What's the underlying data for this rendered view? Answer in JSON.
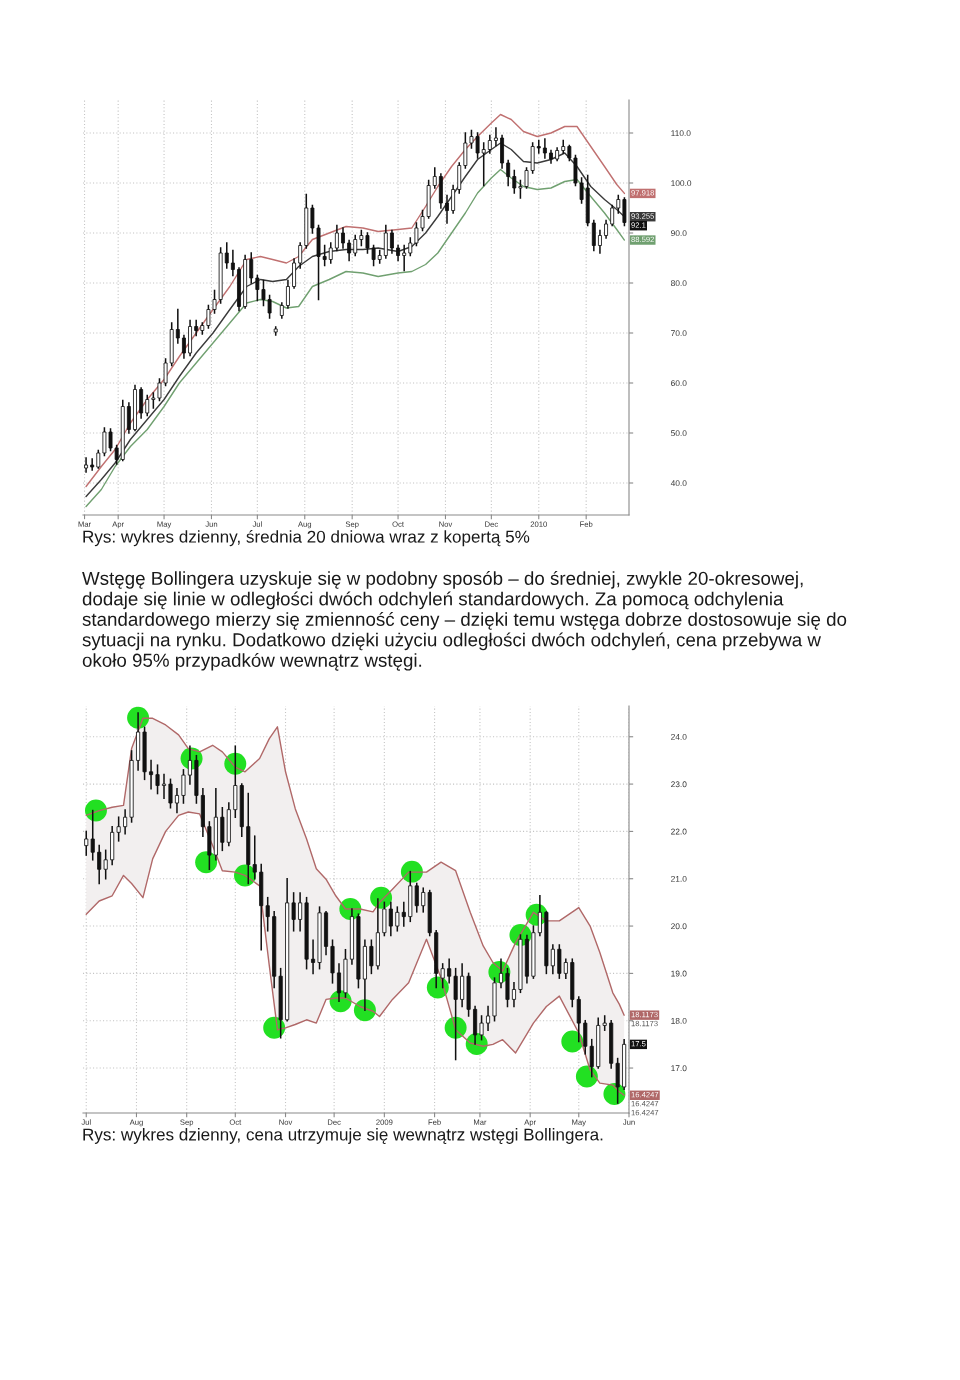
{
  "chart_data": [
    {
      "type": "candlestick",
      "color": "#111111",
      "x": [
        "2009-03-11",
        "2009-03-15",
        "2009-03-19",
        "2009-03-23",
        "2009-03-27",
        "2009-03-31",
        "2009-04-04",
        "2009-04-08",
        "2009-04-12",
        "2009-04-16",
        "2009-04-20",
        "2009-04-24",
        "2009-04-28",
        "2009-05-02",
        "2009-05-06",
        "2009-05-10",
        "2009-05-14",
        "2009-05-18",
        "2009-05-22",
        "2009-05-26",
        "2009-05-30",
        "2009-06-03",
        "2009-06-07",
        "2009-06-11",
        "2009-06-15",
        "2009-06-19",
        "2009-06-23",
        "2009-06-27",
        "2009-07-01",
        "2009-07-05",
        "2009-07-09",
        "2009-07-13",
        "2009-07-17",
        "2009-07-21",
        "2009-07-25",
        "2009-07-29",
        "2009-08-02",
        "2009-08-06",
        "2009-08-10",
        "2009-08-14",
        "2009-08-18",
        "2009-08-22",
        "2009-08-26",
        "2009-08-30",
        "2009-09-03",
        "2009-09-07",
        "2009-09-11",
        "2009-09-15",
        "2009-09-19",
        "2009-09-23",
        "2009-09-27",
        "2009-10-01",
        "2009-10-05",
        "2009-10-09",
        "2009-10-13",
        "2009-10-17",
        "2009-10-21",
        "2009-10-25",
        "2009-10-29",
        "2009-11-02",
        "2009-11-06",
        "2009-11-10",
        "2009-11-14",
        "2009-11-18",
        "2009-11-22",
        "2009-11-26",
        "2009-11-30",
        "2009-12-04",
        "2009-12-08",
        "2009-12-12",
        "2009-12-16",
        "2009-12-20",
        "2009-12-24",
        "2009-12-28",
        "2010-01-01",
        "2010-01-05",
        "2010-01-09",
        "2010-01-13",
        "2010-01-17",
        "2010-01-21",
        "2010-01-25",
        "2010-01-29",
        "2010-02-02",
        "2010-02-06",
        "2010-02-10",
        "2010-02-14",
        "2010-02-18",
        "2010-02-22",
        "2010-02-26"
      ],
      "ohlc": [
        [
          43.0,
          45.0,
          42.2,
          43.6
        ],
        [
          43.6,
          44.8,
          42.6,
          43.2
        ],
        [
          43.2,
          46.5,
          43.0,
          46.0
        ],
        [
          46.0,
          51.0,
          45.5,
          50.2
        ],
        [
          50.2,
          50.8,
          46.5,
          47.0
        ],
        [
          47.0,
          47.5,
          43.8,
          44.7
        ],
        [
          44.7,
          56.5,
          44.5,
          55.3
        ],
        [
          55.3,
          56.0,
          50.0,
          50.7
        ],
        [
          50.7,
          59.5,
          50.5,
          58.7
        ],
        [
          58.7,
          59.0,
          53.0,
          54.0
        ],
        [
          54.0,
          57.5,
          53.5,
          56.7
        ],
        [
          56.7,
          58.0,
          55.0,
          57.0
        ],
        [
          57.0,
          60.8,
          56.5,
          60.0
        ],
        [
          60.0,
          64.8,
          59.5,
          64.0
        ],
        [
          64.0,
          72.0,
          63.5,
          70.7
        ],
        [
          70.7,
          74.7,
          68.0,
          69.0
        ],
        [
          69.0,
          69.5,
          65.0,
          66.0
        ],
        [
          66.0,
          72.5,
          65.5,
          71.3
        ],
        [
          71.3,
          72.5,
          69.5,
          70.5
        ],
        [
          70.5,
          72.0,
          69.8,
          71.5
        ],
        [
          71.5,
          75.5,
          71.0,
          74.7
        ],
        [
          74.7,
          78.5,
          74.0,
          76.7
        ],
        [
          76.7,
          87.0,
          76.0,
          86.0
        ],
        [
          86.0,
          88.0,
          83.0,
          84.0
        ],
        [
          84.0,
          86.5,
          81.5,
          82.7
        ],
        [
          82.7,
          83.0,
          74.5,
          75.3
        ],
        [
          75.3,
          85.5,
          75.0,
          84.7
        ],
        [
          84.7,
          86.0,
          80.0,
          81.0
        ],
        [
          81.0,
          81.5,
          76.5,
          78.7
        ],
        [
          78.7,
          80.5,
          75.5,
          76.7
        ],
        [
          76.7,
          77.5,
          73.0,
          74.0
        ],
        [
          70.2,
          71.2,
          69.6,
          70.8
        ],
        [
          73.5,
          76.0,
          73.0,
          75.5
        ],
        [
          75.5,
          80.5,
          75.0,
          79.3
        ],
        [
          79.3,
          84.8,
          79.0,
          84.0
        ],
        [
          84.0,
          88.0,
          83.0,
          87.5
        ],
        [
          87.5,
          97.7,
          87.0,
          95.0
        ],
        [
          95.0,
          95.5,
          90.0,
          91.0
        ],
        [
          91.0,
          91.5,
          76.7,
          85.3
        ],
        [
          85.3,
          87.5,
          83.5,
          84.7
        ],
        [
          84.7,
          88.0,
          84.0,
          87.0
        ],
        [
          87.0,
          91.5,
          86.5,
          90.0
        ],
        [
          90.0,
          91.0,
          87.0,
          88.0
        ],
        [
          88.0,
          88.5,
          84.5,
          86.0
        ],
        [
          86.0,
          89.5,
          85.5,
          88.7
        ],
        [
          88.7,
          90.5,
          87.5,
          89.5
        ],
        [
          89.5,
          90.0,
          86.0,
          87.0
        ],
        [
          87.0,
          87.5,
          83.5,
          84.7
        ],
        [
          84.7,
          86.5,
          84.0,
          85.5
        ],
        [
          85.5,
          91.5,
          85.0,
          90.0
        ],
        [
          90.0,
          90.5,
          86.0,
          87.0
        ],
        [
          87.0,
          87.5,
          84.5,
          85.5
        ],
        [
          85.5,
          87.5,
          82.5,
          86.0
        ],
        [
          86.0,
          89.0,
          85.5,
          88.0
        ],
        [
          88.0,
          92.0,
          87.5,
          91.0
        ],
        [
          91.0,
          94.5,
          90.5,
          93.3
        ],
        [
          93.3,
          100.5,
          93.0,
          99.5
        ],
        [
          99.5,
          103.0,
          99.0,
          101.3
        ],
        [
          101.3,
          101.8,
          95.0,
          96.0
        ],
        [
          96.0,
          97.5,
          92.0,
          94.5
        ],
        [
          94.5,
          99.5,
          94.0,
          98.7
        ],
        [
          98.7,
          104.0,
          98.0,
          103.5
        ],
        [
          103.5,
          110.0,
          103.0,
          108.0
        ],
        [
          108.0,
          110.5,
          107.0,
          109.3
        ],
        [
          109.3,
          110.0,
          105.0,
          106.0
        ],
        [
          106.0,
          108.0,
          99.5,
          106.7
        ],
        [
          106.7,
          109.5,
          106.0,
          108.5
        ],
        [
          108.5,
          111.0,
          107.5,
          109.0
        ],
        [
          109.0,
          109.5,
          103.0,
          104.0
        ],
        [
          104.0,
          104.5,
          99.5,
          101.3
        ],
        [
          101.3,
          102.5,
          98.0,
          99.0
        ],
        [
          99.0,
          100.5,
          97.0,
          99.3
        ],
        [
          99.3,
          103.0,
          99.0,
          102.5
        ],
        [
          102.5,
          108.0,
          102.0,
          107.3
        ],
        [
          107.3,
          108.5,
          106.0,
          107.0
        ],
        [
          107.0,
          108.8,
          105.0,
          106.0
        ],
        [
          106.0,
          106.5,
          104.0,
          104.8
        ],
        [
          104.8,
          107.0,
          104.5,
          106.5
        ],
        [
          106.5,
          108.5,
          106.0,
          107.3
        ],
        [
          107.3,
          107.5,
          104.5,
          105.0
        ],
        [
          105.0,
          105.5,
          99.5,
          100.0
        ],
        [
          100.0,
          101.0,
          96.0,
          96.7
        ],
        [
          99.0,
          101.5,
          91.5,
          92.0
        ],
        [
          92.0,
          92.5,
          86.5,
          87.5
        ],
        [
          87.5,
          90.5,
          86.0,
          89.5
        ],
        [
          89.5,
          92.5,
          89.0,
          91.8
        ],
        [
          91.8,
          95.5,
          91.5,
          95.0
        ],
        [
          95.0,
          97.5,
          94.0,
          96.7
        ],
        [
          96.7,
          97.0,
          91.5,
          92.1
        ]
      ],
      "series": [
        {
          "type": "line",
          "color": "#c07070",
          "x": [
            "2009-03-11",
            "2009-03-21",
            "2009-03-30",
            "2009-04-09",
            "2009-04-20",
            "2009-05-01",
            "2009-05-11",
            "2009-05-22",
            "2009-06-02",
            "2009-06-13",
            "2009-06-24",
            "2009-07-03",
            "2009-07-11",
            "2009-07-20",
            "2009-07-28",
            "2009-08-06",
            "2009-08-17",
            "2009-08-28",
            "2009-09-08",
            "2009-09-18",
            "2009-10-01",
            "2009-10-10",
            "2009-10-19",
            "2009-10-27",
            "2009-11-05",
            "2009-11-14",
            "2009-11-22",
            "2009-12-01",
            "2009-12-07",
            "2009-12-14",
            "2009-12-22",
            "2009-12-31",
            "2010-01-09",
            "2010-01-18",
            "2010-01-26",
            "2010-02-04",
            "2010-02-13",
            "2010-02-21",
            "2010-02-26"
          ],
          "values": [
            39.3,
            43.3,
            46.7,
            52.0,
            56.7,
            60.7,
            65.3,
            70.0,
            74.7,
            79.3,
            84.7,
            85.3,
            84.7,
            84.0,
            85.3,
            88.7,
            90.0,
            91.3,
            91.0,
            90.3,
            90.7,
            91.0,
            95.3,
            99.3,
            103.3,
            106.7,
            109.3,
            112.0,
            113.7,
            112.7,
            110.3,
            109.3,
            110.0,
            111.3,
            111.3,
            107.3,
            103.3,
            99.7,
            97.918
          ]
        },
        {
          "type": "line",
          "color": "#3a3a3a",
          "x": [
            "2009-03-11",
            "2009-03-21",
            "2009-03-30",
            "2009-04-09",
            "2009-04-20",
            "2009-05-01",
            "2009-05-11",
            "2009-05-22",
            "2009-06-02",
            "2009-06-13",
            "2009-06-24",
            "2009-07-03",
            "2009-07-11",
            "2009-07-20",
            "2009-07-28",
            "2009-08-06",
            "2009-08-17",
            "2009-08-28",
            "2009-09-08",
            "2009-09-18",
            "2009-10-01",
            "2009-10-10",
            "2009-10-19",
            "2009-10-27",
            "2009-11-05",
            "2009-11-14",
            "2009-11-22",
            "2009-12-01",
            "2009-12-07",
            "2009-12-14",
            "2009-12-22",
            "2009-12-31",
            "2010-01-09",
            "2010-01-18",
            "2010-01-26",
            "2010-02-04",
            "2010-02-13",
            "2010-02-21",
            "2010-02-26"
          ],
          "values": [
            37.3,
            40.7,
            44.0,
            48.7,
            52.7,
            56.7,
            61.3,
            66.0,
            70.0,
            74.7,
            79.3,
            80.7,
            80.3,
            80.7,
            83.3,
            85.3,
            86.3,
            86.7,
            86.7,
            87.0,
            86.3,
            87.3,
            90.0,
            93.3,
            97.3,
            101.3,
            104.7,
            106.7,
            108.0,
            106.7,
            104.3,
            104.0,
            104.7,
            106.0,
            103.3,
            99.3,
            96.7,
            94.7,
            93.255
          ]
        },
        {
          "type": "line",
          "color": "#70a070",
          "x": [
            "2009-03-11",
            "2009-03-21",
            "2009-03-30",
            "2009-04-09",
            "2009-04-20",
            "2009-05-01",
            "2009-05-11",
            "2009-05-22",
            "2009-06-02",
            "2009-06-13",
            "2009-06-24",
            "2009-07-03",
            "2009-07-11",
            "2009-07-20",
            "2009-07-28",
            "2009-08-06",
            "2009-08-17",
            "2009-08-28",
            "2009-09-08",
            "2009-09-18",
            "2009-10-01",
            "2009-10-10",
            "2009-10-19",
            "2009-10-27",
            "2009-11-05",
            "2009-11-14",
            "2009-11-22",
            "2009-12-01",
            "2009-12-07",
            "2009-12-14",
            "2009-12-22",
            "2009-12-31",
            "2010-01-09",
            "2010-01-18",
            "2010-01-26",
            "2010-02-04",
            "2010-02-13",
            "2010-02-21",
            "2010-02-26"
          ],
          "values": [
            35.3,
            38.7,
            43.3,
            47.3,
            50.7,
            55.3,
            60.0,
            64.0,
            68.0,
            72.0,
            76.0,
            76.7,
            76.3,
            75.0,
            75.3,
            79.3,
            80.7,
            82.3,
            82.0,
            81.3,
            82.0,
            82.3,
            83.7,
            86.0,
            90.0,
            94.0,
            98.0,
            101.0,
            102.7,
            101.0,
            99.3,
            98.7,
            99.0,
            100.3,
            100.7,
            97.3,
            94.0,
            90.7,
            88.592
          ]
        }
      ],
      "xlim": [
        "2009-03-09",
        "2010-03-01"
      ],
      "ylim": [
        33.6,
        116.6
      ],
      "xticks": [
        {
          "value": "2009-03-10",
          "label": "Mar"
        },
        {
          "value": "2009-04-01",
          "label": "Apr"
        },
        {
          "value": "2009-05-01",
          "label": "May"
        },
        {
          "value": "2009-06-01",
          "label": "Jun"
        },
        {
          "value": "2009-07-01",
          "label": "Jul"
        },
        {
          "value": "2009-08-01",
          "label": "Aug"
        },
        {
          "value": "2009-09-01",
          "label": "Sep"
        },
        {
          "value": "2009-10-01",
          "label": "Oct"
        },
        {
          "value": "2009-11-01",
          "label": "Nov"
        },
        {
          "value": "2009-12-01",
          "label": "Dec"
        },
        {
          "value": "2010-01-01",
          "label": "2010"
        },
        {
          "value": "2010-02-01",
          "label": "Feb"
        }
      ],
      "yticks": [
        {
          "value": 40,
          "label": "40.0"
        },
        {
          "value": 50,
          "label": "50.0"
        },
        {
          "value": 60,
          "label": "60.0"
        },
        {
          "value": 70,
          "label": "70.0"
        },
        {
          "value": 80,
          "label": "80.0"
        },
        {
          "value": 90,
          "label": "90.0"
        },
        {
          "value": 100,
          "label": "100.0"
        },
        {
          "value": 110,
          "label": "110.0"
        }
      ],
      "grid": true,
      "annotations": [
        "Rys: wykres dzienny, średnia 20 dniowa wraz z kopertą 5%",
        "Wstęgę Bollingera uzyskuje się w podobny sposób – do średniej, zwykle 20-okresowej, dodaje się linie w odległości dwóch odchyleń standardowych. Za pomocą odchylenia standardowego mierzy się zmienność ceny – dzięki temu wstęga dobrze dostosowuje się do sytuacji na rynku. Dodatkowo dzięki użyciu odległości dwóch odchyleń, cena przebywa w około 95% przypadków wewnątrz wstęgi.",
        {
          "text": "97.918",
          "x": "2010-02-26",
          "y": 97.918
        },
        {
          "text": "93.255",
          "x": "2010-02-26",
          "y": 93.255
        },
        {
          "text": "92.1",
          "x": "2010-02-26",
          "y": 92.1
        },
        {
          "text": "88.592",
          "x": "2010-02-26",
          "y": 88.592
        }
      ]
    },
    {
      "type": "candlestick",
      "color": "#111111",
      "x": [
        "2008-07-01",
        "2008-07-05",
        "2008-07-09",
        "2008-07-13",
        "2008-07-17",
        "2008-07-21",
        "2008-07-25",
        "2008-07-29",
        "2008-08-02",
        "2008-08-06",
        "2008-08-10",
        "2008-08-14",
        "2008-08-18",
        "2008-08-22",
        "2008-08-26",
        "2008-08-30",
        "2008-09-03",
        "2008-09-07",
        "2008-09-11",
        "2008-09-15",
        "2008-09-19",
        "2008-09-23",
        "2008-09-27",
        "2008-10-01",
        "2008-10-05",
        "2008-10-09",
        "2008-10-13",
        "2008-10-17",
        "2008-10-21",
        "2008-10-25",
        "2008-10-29",
        "2008-11-02",
        "2008-11-06",
        "2008-11-10",
        "2008-11-14",
        "2008-11-18",
        "2008-11-22",
        "2008-11-26",
        "2008-11-30",
        "2008-12-04",
        "2008-12-08",
        "2008-12-12",
        "2008-12-16",
        "2008-12-20",
        "2008-12-24",
        "2008-12-28",
        "2009-01-01",
        "2009-01-05",
        "2009-01-09",
        "2009-01-13",
        "2009-01-17",
        "2009-01-21",
        "2009-01-25",
        "2009-01-29",
        "2009-02-02",
        "2009-02-06",
        "2009-02-10",
        "2009-02-14",
        "2009-02-18",
        "2009-02-22",
        "2009-02-26",
        "2009-03-02",
        "2009-03-06",
        "2009-03-10",
        "2009-03-14",
        "2009-03-18",
        "2009-03-22",
        "2009-03-26",
        "2009-03-30",
        "2009-04-03",
        "2009-04-07",
        "2009-04-11",
        "2009-04-15",
        "2009-04-19",
        "2009-04-23",
        "2009-04-27",
        "2009-05-01",
        "2009-05-05",
        "2009-05-09",
        "2009-05-13",
        "2009-05-17",
        "2009-05-21",
        "2009-05-25",
        "2009-05-29"
      ],
      "ohlc": [
        [
          21.7,
          22.0,
          21.5,
          21.84
        ],
        [
          21.84,
          22.44,
          21.4,
          21.56
        ],
        [
          21.56,
          21.7,
          20.9,
          21.2
        ],
        [
          21.2,
          21.6,
          21.0,
          21.4
        ],
        [
          21.4,
          22.1,
          21.3,
          21.98
        ],
        [
          21.98,
          22.3,
          21.8,
          22.1
        ],
        [
          22.1,
          22.45,
          21.95,
          22.3
        ],
        [
          22.3,
          23.7,
          22.2,
          23.5
        ],
        [
          23.5,
          24.5,
          23.3,
          24.1
        ],
        [
          24.1,
          24.2,
          23.1,
          23.26
        ],
        [
          23.26,
          23.5,
          22.9,
          23.2
        ],
        [
          23.2,
          23.4,
          22.8,
          22.97
        ],
        [
          22.97,
          23.2,
          22.7,
          23.0
        ],
        [
          23.0,
          23.1,
          22.5,
          22.6
        ],
        [
          22.6,
          22.9,
          22.4,
          22.76
        ],
        [
          22.76,
          23.3,
          22.6,
          23.19
        ],
        [
          23.19,
          23.8,
          23.0,
          23.5
        ],
        [
          23.5,
          23.6,
          22.6,
          22.76
        ],
        [
          22.76,
          22.9,
          21.9,
          22.1
        ],
        [
          22.1,
          22.2,
          21.2,
          21.5
        ],
        [
          21.5,
          22.9,
          21.4,
          22.3
        ],
        [
          22.3,
          22.5,
          21.6,
          21.77
        ],
        [
          21.77,
          22.6,
          21.7,
          22.46
        ],
        [
          22.46,
          23.8,
          22.3,
          22.97
        ],
        [
          22.97,
          23.0,
          21.9,
          22.1
        ],
        [
          22.1,
          22.8,
          20.9,
          21.3
        ],
        [
          21.3,
          21.9,
          21.0,
          21.14
        ],
        [
          21.14,
          21.3,
          19.5,
          20.43
        ],
        [
          20.43,
          20.6,
          19.9,
          20.2
        ],
        [
          20.2,
          20.3,
          18.7,
          18.94
        ],
        [
          18.94,
          19.1,
          17.64,
          18.02
        ],
        [
          18.02,
          21.0,
          18.0,
          20.49
        ],
        [
          20.49,
          20.7,
          19.9,
          20.14
        ],
        [
          20.14,
          20.7,
          19.9,
          20.49
        ],
        [
          20.49,
          20.6,
          19.1,
          19.3
        ],
        [
          19.3,
          19.7,
          19.0,
          19.23
        ],
        [
          19.23,
          20.4,
          19.1,
          20.28
        ],
        [
          20.28,
          20.3,
          19.4,
          19.57
        ],
        [
          19.57,
          19.7,
          18.8,
          19.01
        ],
        [
          19.01,
          19.2,
          18.41,
          18.59
        ],
        [
          18.59,
          19.5,
          18.5,
          19.3
        ],
        [
          19.3,
          20.36,
          19.2,
          20.2
        ],
        [
          20.2,
          20.25,
          18.7,
          18.88
        ],
        [
          18.88,
          19.7,
          18.22,
          19.57
        ],
        [
          19.57,
          19.7,
          19.0,
          19.16
        ],
        [
          19.16,
          20.57,
          19.1,
          19.86
        ],
        [
          19.86,
          20.5,
          19.8,
          20.36
        ],
        [
          20.36,
          20.5,
          19.8,
          20.0
        ],
        [
          20.0,
          20.4,
          19.9,
          20.29
        ],
        [
          20.29,
          20.5,
          20.0,
          20.2
        ],
        [
          20.2,
          21.15,
          20.1,
          20.85
        ],
        [
          20.85,
          20.9,
          20.3,
          20.43
        ],
        [
          20.43,
          20.8,
          20.3,
          20.71
        ],
        [
          20.71,
          20.75,
          19.8,
          19.86
        ],
        [
          19.86,
          19.9,
          18.7,
          19.0
        ],
        [
          18.9,
          19.2,
          18.7,
          19.1
        ],
        [
          19.1,
          19.3,
          18.8,
          18.94
        ],
        [
          18.94,
          19.1,
          17.18,
          18.45
        ],
        [
          18.45,
          19.2,
          18.3,
          18.94
        ],
        [
          18.94,
          19.0,
          18.1,
          18.24
        ],
        [
          18.24,
          18.3,
          17.51,
          17.7
        ],
        [
          17.7,
          18.1,
          17.6,
          17.95
        ],
        [
          17.95,
          18.3,
          17.8,
          18.1
        ],
        [
          18.1,
          18.9,
          18.0,
          18.8
        ],
        [
          18.8,
          19.3,
          18.7,
          19.0
        ],
        [
          19.0,
          19.1,
          18.3,
          18.45
        ],
        [
          18.45,
          18.8,
          18.3,
          18.66
        ],
        [
          18.66,
          19.81,
          18.6,
          19.72
        ],
        [
          19.72,
          19.8,
          18.8,
          18.94
        ],
        [
          18.94,
          20.0,
          18.9,
          19.86
        ],
        [
          19.86,
          20.64,
          19.8,
          20.29
        ],
        [
          20.29,
          20.3,
          19.0,
          19.16
        ],
        [
          19.16,
          19.6,
          19.0,
          19.51
        ],
        [
          19.51,
          19.6,
          18.9,
          19.0
        ],
        [
          19.0,
          19.3,
          18.9,
          19.23
        ],
        [
          19.23,
          19.3,
          18.3,
          18.45
        ],
        [
          18.45,
          18.5,
          17.56,
          17.95
        ],
        [
          17.95,
          18.0,
          17.3,
          17.46
        ],
        [
          17.46,
          17.6,
          16.82,
          17.03
        ],
        [
          17.03,
          18.05,
          17.0,
          17.9
        ],
        [
          17.9,
          18.1,
          17.8,
          17.95
        ],
        [
          17.95,
          18.0,
          17.0,
          17.1
        ],
        [
          17.1,
          17.2,
          16.26,
          16.6
        ],
        [
          16.6,
          17.6,
          16.55,
          17.5
        ]
      ],
      "series": [
        {
          "type": "line",
          "color": "#b06868",
          "x": [
            "2008-07-01",
            "2008-07-09",
            "2008-07-17",
            "2008-07-24",
            "2008-07-29",
            "2008-08-05",
            "2008-08-11",
            "2008-08-19",
            "2008-08-27",
            "2008-09-02",
            "2008-09-09",
            "2008-09-17",
            "2008-09-23",
            "2008-10-01",
            "2008-10-07",
            "2008-10-16",
            "2008-10-22",
            "2008-10-27",
            "2008-11-01",
            "2008-11-07",
            "2008-11-14",
            "2008-11-20",
            "2008-11-26",
            "2008-12-02",
            "2008-12-08",
            "2008-12-17",
            "2008-12-25",
            "2008-12-29",
            "2009-01-06",
            "2009-01-16",
            "2009-01-27",
            "2009-02-05",
            "2009-02-14",
            "2009-02-23",
            "2009-03-03",
            "2009-03-09",
            "2009-03-15",
            "2009-03-23",
            "2009-04-03",
            "2009-04-11",
            "2009-04-19",
            "2009-05-01",
            "2009-05-08",
            "2009-05-14",
            "2009-05-22",
            "2009-05-26",
            "2009-05-29"
          ],
          "values": [
            22.34,
            22.44,
            22.51,
            22.55,
            23.75,
            24.39,
            24.39,
            24.25,
            24.04,
            23.75,
            23.68,
            23.82,
            23.68,
            23.36,
            23.26,
            23.54,
            23.96,
            24.21,
            23.26,
            22.48,
            21.84,
            21.21,
            20.99,
            20.64,
            20.36,
            20.36,
            20.3,
            20.5,
            20.78,
            21.14,
            21.14,
            21.35,
            21.17,
            20.29,
            19.58,
            19.23,
            19.05,
            19.65,
            20.29,
            20.11,
            20.11,
            20.39,
            20.0,
            19.44,
            18.59,
            18.35,
            18.1173
          ]
        },
        {
          "type": "line",
          "color": "#b06868",
          "x": [
            "2008-07-01",
            "2008-07-09",
            "2008-07-17",
            "2008-07-24",
            "2008-07-29",
            "2008-08-05",
            "2008-08-11",
            "2008-08-19",
            "2008-08-27",
            "2008-09-02",
            "2008-09-09",
            "2008-09-17",
            "2008-09-23",
            "2008-10-01",
            "2008-10-07",
            "2008-10-16",
            "2008-10-22",
            "2008-10-27",
            "2008-11-01",
            "2008-11-07",
            "2008-11-14",
            "2008-11-20",
            "2008-11-26",
            "2008-12-02",
            "2008-12-08",
            "2008-12-17",
            "2008-12-25",
            "2008-12-29",
            "2009-01-06",
            "2009-01-16",
            "2009-01-27",
            "2009-02-05",
            "2009-02-14",
            "2009-02-23",
            "2009-03-03",
            "2009-03-09",
            "2009-03-15",
            "2009-03-23",
            "2009-04-03",
            "2009-04-11",
            "2009-04-19",
            "2009-05-01",
            "2009-05-08",
            "2009-05-14",
            "2009-05-22",
            "2009-05-26",
            "2009-05-29"
          ],
          "values": [
            20.25,
            20.53,
            20.64,
            21.07,
            20.9,
            20.6,
            21.42,
            22.0,
            22.34,
            22.41,
            22.37,
            21.7,
            21.17,
            21.14,
            21.07,
            20.85,
            19.16,
            17.81,
            17.85,
            17.92,
            18.02,
            17.95,
            18.45,
            18.48,
            18.48,
            18.3,
            18.2,
            18.09,
            18.45,
            18.8,
            19.72,
            18.9,
            17.81,
            17.53,
            17.46,
            17.5,
            17.6,
            17.32,
            17.95,
            18.3,
            18.52,
            17.74,
            16.96,
            16.68,
            16.64,
            16.5,
            16.4247
          ]
        },
        {
          "type": "line",
          "color": "#f2efef",
          "x": [
            "2008-07-01",
            "2008-07-09",
            "2008-07-17",
            "2008-07-24",
            "2008-07-29",
            "2008-08-05",
            "2008-08-11",
            "2008-08-19",
            "2008-08-27",
            "2008-09-02",
            "2008-09-09",
            "2008-09-17",
            "2008-09-23",
            "2008-10-01",
            "2008-10-07",
            "2008-10-16",
            "2008-10-22",
            "2008-10-27",
            "2008-11-01",
            "2008-11-07",
            "2008-11-14",
            "2008-11-20",
            "2008-11-26",
            "2008-12-02",
            "2008-12-08",
            "2008-12-17",
            "2008-12-25",
            "2008-12-29",
            "2009-01-06",
            "2009-01-16",
            "2009-01-27",
            "2009-02-05",
            "2009-02-14",
            "2009-02-23",
            "2009-03-03",
            "2009-03-09",
            "2009-03-15",
            "2009-03-23",
            "2009-04-03",
            "2009-04-11",
            "2009-04-19",
            "2009-05-01",
            "2009-05-08",
            "2009-05-14",
            "2009-05-22",
            "2009-05-26",
            "2009-05-29"
          ],
          "values": [
            null,
            null,
            null,
            null,
            null,
            null,
            null,
            null,
            null,
            null,
            null,
            null,
            null,
            null,
            null,
            null,
            null,
            null,
            null,
            null,
            null,
            null,
            null,
            null,
            null,
            null,
            null,
            null,
            null,
            null,
            null,
            null,
            null,
            null,
            null,
            null,
            null,
            null,
            null,
            null,
            null,
            null,
            null,
            null,
            null,
            null,
            null
          ],
          "upper": [
            22.34,
            22.44,
            22.51,
            22.55,
            23.75,
            24.39,
            24.39,
            24.25,
            24.04,
            23.75,
            23.68,
            23.82,
            23.68,
            23.36,
            23.26,
            23.54,
            23.96,
            24.21,
            23.26,
            22.48,
            21.84,
            21.21,
            20.99,
            20.64,
            20.36,
            20.36,
            20.3,
            20.5,
            20.78,
            21.14,
            21.14,
            21.35,
            21.17,
            20.29,
            19.58,
            19.23,
            19.05,
            19.65,
            20.29,
            20.11,
            20.11,
            20.39,
            20.0,
            19.44,
            18.59,
            18.35,
            18.1173
          ],
          "lower": [
            20.25,
            20.53,
            20.64,
            21.07,
            20.9,
            20.6,
            21.42,
            22.0,
            22.34,
            22.41,
            22.37,
            21.7,
            21.17,
            21.14,
            21.07,
            20.85,
            19.16,
            17.81,
            17.85,
            17.92,
            18.02,
            17.95,
            18.45,
            18.48,
            18.48,
            18.3,
            18.2,
            18.09,
            18.45,
            18.8,
            19.72,
            18.9,
            17.81,
            17.53,
            17.46,
            17.5,
            17.6,
            17.32,
            17.95,
            18.3,
            18.52,
            17.74,
            16.96,
            16.68,
            16.64,
            16.5,
            16.4247
          ]
        },
        {
          "type": "scatter",
          "color": "#22e022",
          "marker": "circle",
          "x": [
            "2008-07-07",
            "2008-08-02",
            "2008-09-04",
            "2008-09-13",
            "2008-10-01",
            "2008-10-07",
            "2008-10-25",
            "2008-12-05",
            "2008-12-11",
            "2008-12-20",
            "2008-12-30",
            "2009-01-18",
            "2009-02-03",
            "2009-02-14",
            "2009-02-27",
            "2009-03-13",
            "2009-03-26",
            "2009-04-05",
            "2009-04-27",
            "2009-05-06",
            "2009-05-23"
          ],
          "values": [
            22.44,
            24.4,
            23.54,
            21.35,
            23.43,
            21.07,
            17.85,
            18.41,
            20.36,
            18.22,
            20.6,
            21.15,
            18.7,
            17.85,
            17.51,
            19.03,
            19.81,
            20.24,
            17.56,
            16.82,
            16.45
          ]
        }
      ],
      "xlim": [
        "2008-06-29",
        "2009-06-01"
      ],
      "ylim": [
        16.05,
        24.65
      ],
      "xticks": [
        {
          "value": "2008-07-01",
          "label": "Jul"
        },
        {
          "value": "2008-08-01",
          "label": "Aug"
        },
        {
          "value": "2008-09-01",
          "label": "Sep"
        },
        {
          "value": "2008-10-01",
          "label": "Oct"
        },
        {
          "value": "2008-11-01",
          "label": "Nov"
        },
        {
          "value": "2008-12-01",
          "label": "Dec"
        },
        {
          "value": "2009-01-01",
          "label": "2009"
        },
        {
          "value": "2009-02-01",
          "label": "Feb"
        },
        {
          "value": "2009-03-01",
          "label": "Mar"
        },
        {
          "value": "2009-04-01",
          "label": "Apr"
        },
        {
          "value": "2009-05-01",
          "label": "May"
        },
        {
          "value": "2009-06-01",
          "label": "Jun"
        }
      ],
      "yticks": [
        {
          "value": 17,
          "label": "17.0"
        },
        {
          "value": 18,
          "label": "18.0"
        },
        {
          "value": 19,
          "label": "19.0"
        },
        {
          "value": 20,
          "label": "20.0"
        },
        {
          "value": 21,
          "label": "21.0"
        },
        {
          "value": 22,
          "label": "22.0"
        },
        {
          "value": 23,
          "label": "23.0"
        },
        {
          "value": 24,
          "label": "24.0"
        }
      ],
      "grid": true,
      "annotations": [
        "Rys: wykres dzienny, cena utrzymuje się wewnątrz wstęgi Bollingera.",
        {
          "text": "18.1173",
          "x": "2009-05-29",
          "y": 18.1173
        },
        {
          "text": "18.1173",
          "x": "2009-05-29",
          "y": 18.1173
        },
        {
          "text": "17.5",
          "x": "2009-05-29",
          "y": 17.5
        },
        {
          "text": "16.4247",
          "x": "2009-05-29",
          "y": 16.4247
        },
        {
          "text": "16.4247",
          "x": "2009-05-29",
          "y": 16.4247
        },
        {
          "text": "16.4247",
          "x": "2009-05-29",
          "y": 16.4247
        }
      ]
    }
  ]
}
